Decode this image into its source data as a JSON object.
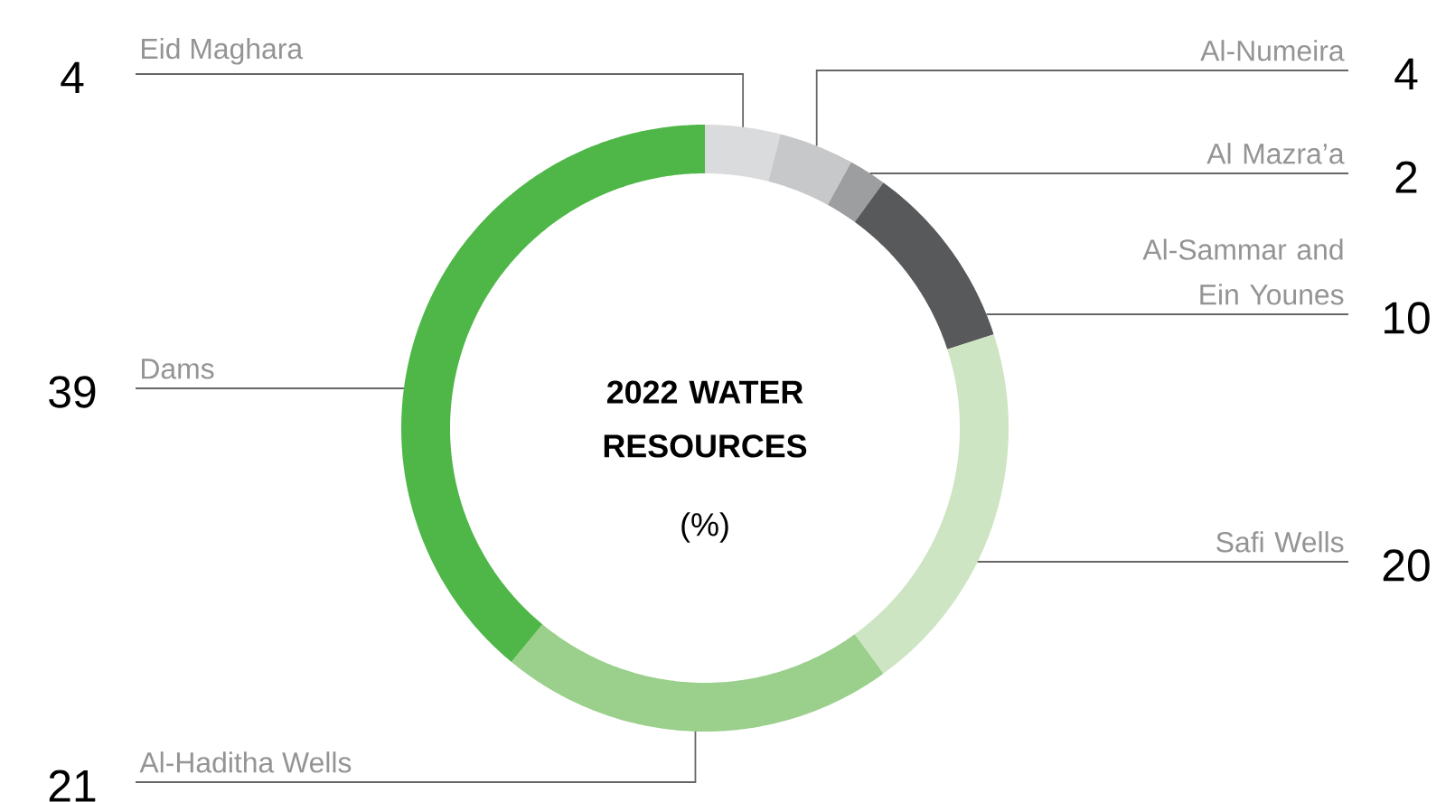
{
  "chart_data": {
    "type": "donut",
    "title": "2022 WATER RESOURCES",
    "subtitle": "(%)",
    "categories": [
      "Eid Maghara",
      "Al-Numeira",
      "Al Mazra’a",
      "Al-Sammar and Ein Younes",
      "Safi Wells",
      "Al-Haditha Wells",
      "Dams"
    ],
    "values": [
      4,
      4,
      2,
      10,
      20,
      21,
      39
    ],
    "colors": [
      "#dadbdc",
      "#c7c8ca",
      "#9d9ea0",
      "#58595b",
      "#cde5c3",
      "#9bcf8c",
      "#4eb748"
    ],
    "data_labels": true
  }
}
